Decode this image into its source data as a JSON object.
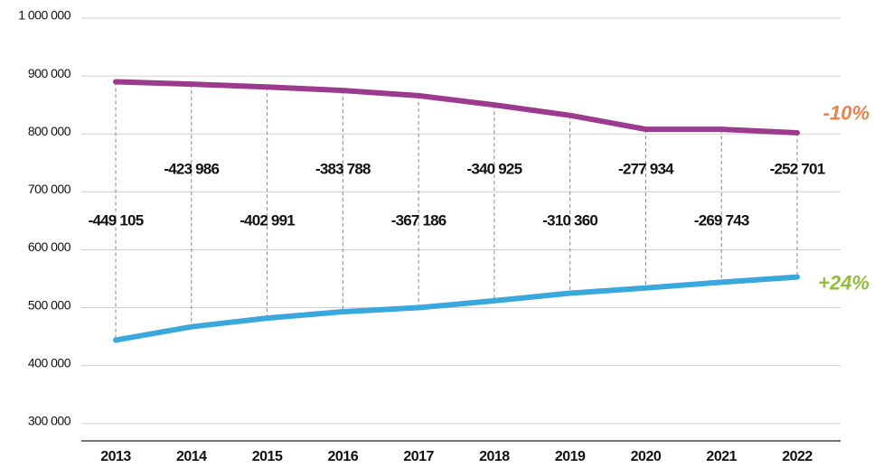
{
  "chart_data": {
    "type": "line",
    "categories": [
      "2013",
      "2014",
      "2015",
      "2016",
      "2017",
      "2018",
      "2019",
      "2020",
      "2021",
      "2022"
    ],
    "series": [
      {
        "color": "#9b3a8e",
        "values": [
          890000,
          886000,
          881000,
          875000,
          866000,
          850000,
          832000,
          808000,
          808000,
          802000
        ]
      },
      {
        "color": "#3aa7dd",
        "values": [
          444000,
          467000,
          482000,
          493000,
          500000,
          512000,
          525000,
          534000,
          544000,
          553000
        ]
      }
    ],
    "differences": {
      "values": [
        -449105,
        -423986,
        -402991,
        -383788,
        -367186,
        -340925,
        -310360,
        -277934,
        -269743,
        -252701
      ],
      "value_labels": [
        "-449 105",
        "-423 986",
        "-402 991",
        "-383 788",
        "-367 186",
        "-340 925",
        "-310 360",
        "-277 934",
        "-269 743",
        "-252 701"
      ]
    },
    "annotations": [
      {
        "text": "-10%",
        "color": "#e8834a"
      },
      {
        "text": "+24%",
        "color": "#8dbf3a"
      }
    ],
    "ylim": [
      270000,
      1000000
    ],
    "yticks": [
      {
        "value": 300000,
        "label": "300 000"
      },
      {
        "value": 400000,
        "label": "400 000"
      },
      {
        "value": 500000,
        "label": "500 000"
      },
      {
        "value": 600000,
        "label": "600 000"
      },
      {
        "value": 700000,
        "label": "700 000"
      },
      {
        "value": 800000,
        "label": "800 000"
      },
      {
        "value": 900000,
        "label": "900 000"
      },
      {
        "value": 1000000,
        "label": "1 000 000"
      }
    ],
    "grid": true
  }
}
